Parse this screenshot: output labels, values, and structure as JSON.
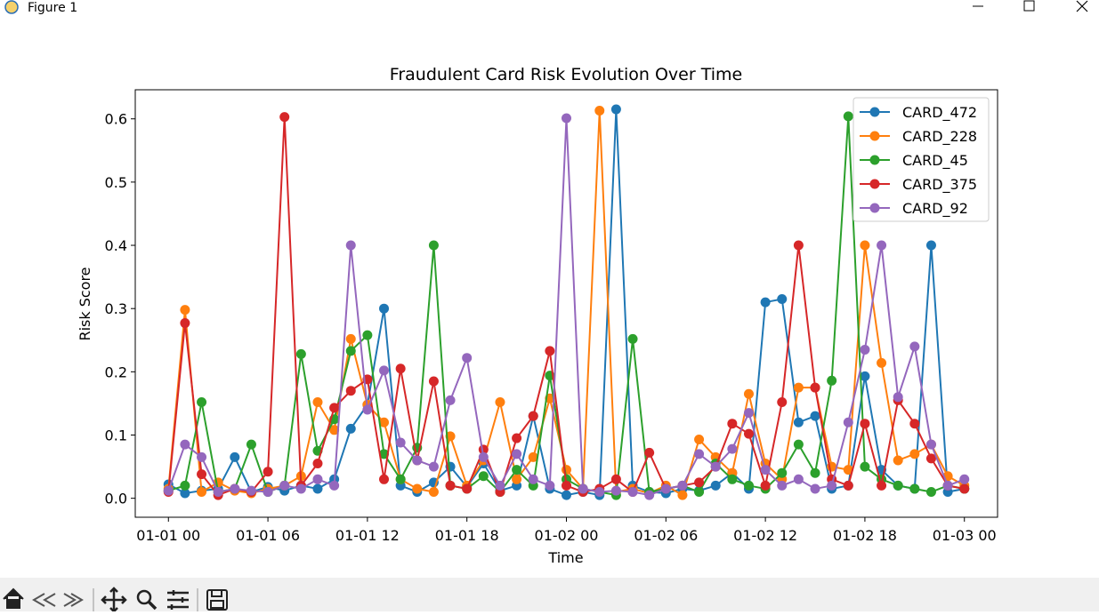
{
  "window": {
    "title": "Figure 1"
  },
  "chart_data": {
    "type": "line",
    "title": "Fraudulent Card Risk Evolution Over Time",
    "x_label": "Time",
    "y_label": "Risk Score",
    "x": [
      "01-01 00",
      "01-01 01",
      "01-01 02",
      "01-01 03",
      "01-01 04",
      "01-01 05",
      "01-01 06",
      "01-01 07",
      "01-01 08",
      "01-01 09",
      "01-01 10",
      "01-01 11",
      "01-01 12",
      "01-01 13",
      "01-01 14",
      "01-01 15",
      "01-01 16",
      "01-01 17",
      "01-01 18",
      "01-01 19",
      "01-01 20",
      "01-01 21",
      "01-01 22",
      "01-01 23",
      "01-02 00",
      "01-02 01",
      "01-02 02",
      "01-02 03",
      "01-02 04",
      "01-02 05",
      "01-02 06",
      "01-02 07",
      "01-02 08",
      "01-02 09",
      "01-02 10",
      "01-02 11",
      "01-02 12",
      "01-02 13",
      "01-02 14",
      "01-02 15",
      "01-02 16",
      "01-02 17",
      "01-02 18",
      "01-02 19",
      "01-02 20",
      "01-02 21",
      "01-02 22",
      "01-02 23",
      "01-03 00"
    ],
    "xlim": [
      "12-31 22",
      "01-03 02"
    ],
    "xticks": [
      "01-01 00",
      "01-01 06",
      "01-01 12",
      "01-01 18",
      "01-02 00",
      "01-02 06",
      "01-02 12",
      "01-02 18",
      "01-03 00"
    ],
    "ylim": [
      -0.03,
      0.646
    ],
    "yticks": [
      {
        "value": 0,
        "label": "0.0"
      },
      0.1,
      0.2,
      0.3,
      0.4,
      0.5,
      0.6
    ],
    "legend": "upper right",
    "grid": false,
    "series": [
      {
        "name": "CARD_472",
        "color": "#1f77b4",
        "values": [
          0.022,
          0.008,
          0.012,
          0.015,
          0.065,
          0.01,
          0.018,
          0.012,
          0.02,
          0.015,
          0.03,
          0.11,
          0.148,
          0.3,
          0.02,
          0.01,
          0.025,
          0.05,
          0.018,
          0.055,
          0.012,
          0.02,
          0.13,
          0.015,
          0.005,
          0.01,
          0.005,
          0.615,
          0.02,
          0.01,
          0.008,
          0.015,
          0.012,
          0.02,
          0.04,
          0.015,
          0.31,
          0.315,
          0.12,
          0.13,
          0.015,
          0.02,
          0.193,
          0.045,
          0.02,
          0.015,
          0.4,
          0.01,
          0.015
        ]
      },
      {
        "name": "CARD_228",
        "color": "#ff7f0e",
        "values": [
          0.015,
          0.298,
          0.01,
          0.025,
          0.012,
          0.008,
          0.015,
          0.02,
          0.035,
          0.152,
          0.108,
          0.252,
          0.148,
          0.12,
          0.03,
          0.015,
          0.01,
          0.098,
          0.02,
          0.06,
          0.152,
          0.03,
          0.065,
          0.158,
          0.045,
          0.015,
          0.613,
          0.01,
          0.015,
          0.008,
          0.02,
          0.005,
          0.093,
          0.065,
          0.04,
          0.165,
          0.055,
          0.03,
          0.175,
          0.175,
          0.05,
          0.045,
          0.4,
          0.214,
          0.06,
          0.07,
          0.085,
          0.035,
          0.02
        ]
      },
      {
        "name": "CARD_45",
        "color": "#2ca02c",
        "values": [
          0.012,
          0.02,
          0.152,
          0.01,
          0.015,
          0.085,
          0.01,
          0.02,
          0.228,
          0.075,
          0.125,
          0.233,
          0.258,
          0.07,
          0.03,
          0.08,
          0.4,
          0.02,
          0.015,
          0.035,
          0.01,
          0.045,
          0.02,
          0.194,
          0.03,
          0.015,
          0.01,
          0.005,
          0.252,
          0.01,
          0.015,
          0.02,
          0.01,
          0.055,
          0.03,
          0.02,
          0.015,
          0.04,
          0.085,
          0.04,
          0.186,
          0.604,
          0.05,
          0.03,
          0.02,
          0.015,
          0.01,
          0.02,
          0.015
        ]
      },
      {
        "name": "CARD_375",
        "color": "#d62728",
        "values": [
          0.01,
          0.277,
          0.038,
          0.005,
          0.015,
          0.01,
          0.042,
          0.603,
          0.02,
          0.055,
          0.143,
          0.17,
          0.188,
          0.03,
          0.205,
          0.06,
          0.185,
          0.02,
          0.015,
          0.077,
          0.01,
          0.095,
          0.13,
          0.233,
          0.02,
          0.01,
          0.015,
          0.03,
          0.01,
          0.072,
          0.015,
          0.02,
          0.025,
          0.05,
          0.118,
          0.102,
          0.02,
          0.152,
          0.4,
          0.175,
          0.03,
          0.02,
          0.118,
          0.02,
          0.155,
          0.118,
          0.063,
          0.02,
          0.015
        ]
      },
      {
        "name": "CARD_92",
        "color": "#9467bd",
        "values": [
          0.012,
          0.085,
          0.065,
          0.01,
          0.015,
          0.012,
          0.01,
          0.02,
          0.015,
          0.03,
          0.02,
          0.4,
          0.14,
          0.202,
          0.088,
          0.06,
          0.05,
          0.155,
          0.222,
          0.065,
          0.02,
          0.07,
          0.03,
          0.02,
          0.601,
          0.015,
          0.01,
          0.012,
          0.01,
          0.005,
          0.015,
          0.02,
          0.07,
          0.05,
          0.078,
          0.135,
          0.045,
          0.02,
          0.03,
          0.015,
          0.02,
          0.12,
          0.235,
          0.4,
          0.16,
          0.24,
          0.085,
          0.02,
          0.03
        ]
      }
    ]
  }
}
